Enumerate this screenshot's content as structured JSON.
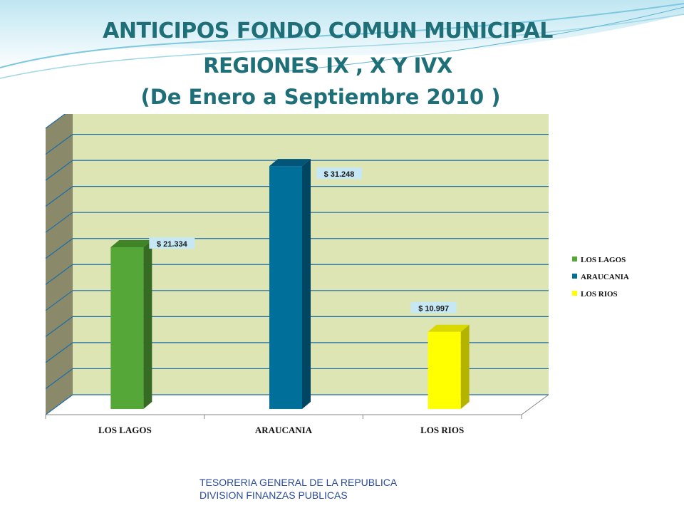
{
  "slide": {
    "title_lines": [
      "ANTICIPOS FONDO COMUN MUNICIPAL",
      "REGIONES IX , X  Y IVX",
      "(De Enero a Septiembre 2010 )"
    ],
    "footer_lines": [
      "TESORERIA GENERAL DE LA REPUBLICA",
      "DIVISION FINANZAS PUBLICAS"
    ]
  },
  "chart_data": {
    "type": "bar",
    "style": "3d-column",
    "categories": [
      "LOS LAGOS",
      "ARAUCANIA",
      "LOS RIOS"
    ],
    "values": [
      21334,
      31248,
      10997
    ],
    "data_labels": [
      "$ 21.334",
      "$ 31.248",
      "$ 10.997"
    ],
    "legend": [
      "LOS LAGOS",
      "ARAUCANIA",
      "LOS RIOS"
    ],
    "legend_position": "right",
    "colors": [
      "#55a737",
      "#006f9a",
      "#ffff00"
    ],
    "side_colors": [
      "#356b22",
      "#004662",
      "#b3b300"
    ],
    "top_colors": [
      "#3f8527",
      "#005578",
      "#d9d900"
    ],
    "wall_color": "#dde5b5",
    "side_wall_color": "#8a8a6a",
    "gridline_color": "#1c6ca8",
    "ylim": [
      0,
      35000
    ],
    "grid": true
  }
}
